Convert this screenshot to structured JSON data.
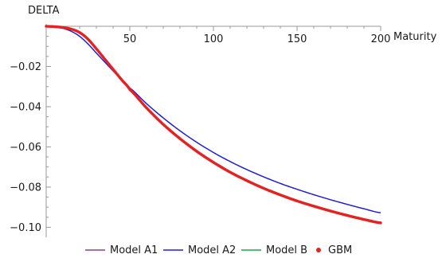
{
  "chart_data": {
    "type": "line",
    "ylabel": "DELTA",
    "xlabel": "Maturity",
    "xlim": [
      0,
      200
    ],
    "ylim": [
      -0.105,
      0
    ],
    "x_ticks": [
      50,
      100,
      150,
      200
    ],
    "y_ticks": [
      -0.02,
      -0.04,
      -0.06,
      -0.08,
      -0.1
    ],
    "x_tick_labels": [
      "50",
      "100",
      "150",
      "200"
    ],
    "y_tick_labels": [
      "-0.02",
      "-0.04",
      "-0.06",
      "-0.08",
      "-0.10"
    ],
    "grid": false,
    "legend_position": "bottom",
    "x": [
      0,
      5,
      10,
      15,
      20,
      25,
      30,
      35,
      40,
      45,
      50,
      60,
      70,
      80,
      90,
      100,
      110,
      120,
      130,
      140,
      150,
      160,
      170,
      180,
      190,
      200
    ],
    "series": [
      {
        "name": "Model A1",
        "color": "#8a3d96",
        "style": "line",
        "values": [
          0,
          -0.0002,
          -0.0006,
          -0.0014,
          -0.0031,
          -0.0064,
          -0.0112,
          -0.0163,
          -0.0214,
          -0.0265,
          -0.0315,
          -0.0406,
          -0.0488,
          -0.0559,
          -0.0622,
          -0.0677,
          -0.0726,
          -0.0768,
          -0.0806,
          -0.0839,
          -0.0869,
          -0.0895,
          -0.0919,
          -0.0941,
          -0.0961,
          -0.0978
        ]
      },
      {
        "name": "Model A2",
        "color": "#1f1fd6",
        "style": "line",
        "values": [
          0,
          -0.0003,
          -0.001,
          -0.0025,
          -0.005,
          -0.0088,
          -0.0133,
          -0.0178,
          -0.0222,
          -0.0266,
          -0.0307,
          -0.0385,
          -0.0456,
          -0.052,
          -0.0577,
          -0.0628,
          -0.0673,
          -0.0713,
          -0.0749,
          -0.0782,
          -0.0811,
          -0.0838,
          -0.0863,
          -0.0886,
          -0.0908,
          -0.0928
        ]
      },
      {
        "name": "Model B",
        "color": "#22a83a",
        "style": "line",
        "values": [
          0,
          -0.0002,
          -0.0006,
          -0.0014,
          -0.0031,
          -0.0064,
          -0.0112,
          -0.0163,
          -0.0214,
          -0.0265,
          -0.0315,
          -0.0406,
          -0.0488,
          -0.0559,
          -0.0622,
          -0.0677,
          -0.0726,
          -0.0768,
          -0.0806,
          -0.0839,
          -0.0869,
          -0.0895,
          -0.0919,
          -0.0941,
          -0.0961,
          -0.0978
        ]
      },
      {
        "name": "GBM",
        "color": "#e32222",
        "style": "points",
        "values": [
          0,
          -0.0002,
          -0.0006,
          -0.0014,
          -0.0031,
          -0.0064,
          -0.0112,
          -0.0163,
          -0.0214,
          -0.0265,
          -0.0315,
          -0.0406,
          -0.0488,
          -0.0559,
          -0.0622,
          -0.0677,
          -0.0726,
          -0.0768,
          -0.0806,
          -0.0839,
          -0.0869,
          -0.0895,
          -0.0919,
          -0.0941,
          -0.0961,
          -0.0978
        ]
      }
    ]
  }
}
